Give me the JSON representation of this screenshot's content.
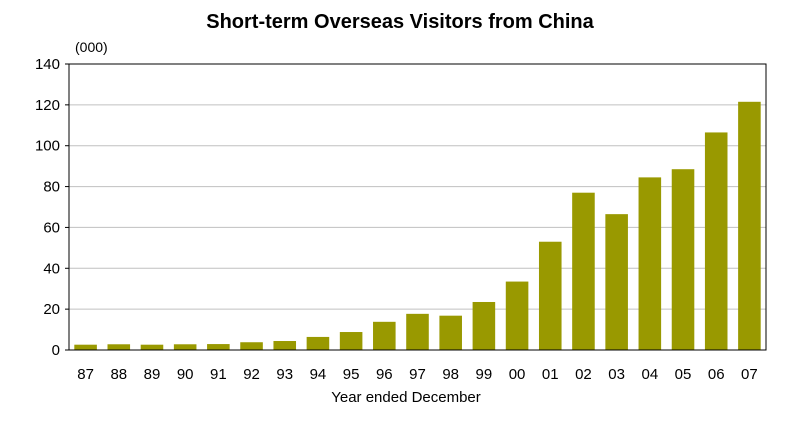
{
  "chart_data": {
    "type": "bar",
    "title": "Short-term Overseas Visitors from China",
    "ylabel": "(000)",
    "xlabel": "Year ended December",
    "categories": [
      "87",
      "88",
      "89",
      "90",
      "91",
      "92",
      "93",
      "94",
      "95",
      "96",
      "97",
      "98",
      "99",
      "00",
      "01",
      "02",
      "03",
      "04",
      "05",
      "06",
      "07"
    ],
    "values": [
      2.6,
      2.8,
      2.6,
      2.8,
      2.9,
      3.8,
      4.4,
      6.4,
      8.8,
      13.8,
      17.7,
      16.8,
      23.5,
      33.5,
      53.0,
      77.0,
      66.5,
      84.5,
      88.5,
      106.5,
      121.5
    ],
    "ylim": [
      0,
      140
    ],
    "yticks": [
      0,
      20,
      40,
      60,
      80,
      100,
      120,
      140
    ],
    "grid": true,
    "bar_color": "#999900",
    "grid_color": "#c0c0c0"
  }
}
